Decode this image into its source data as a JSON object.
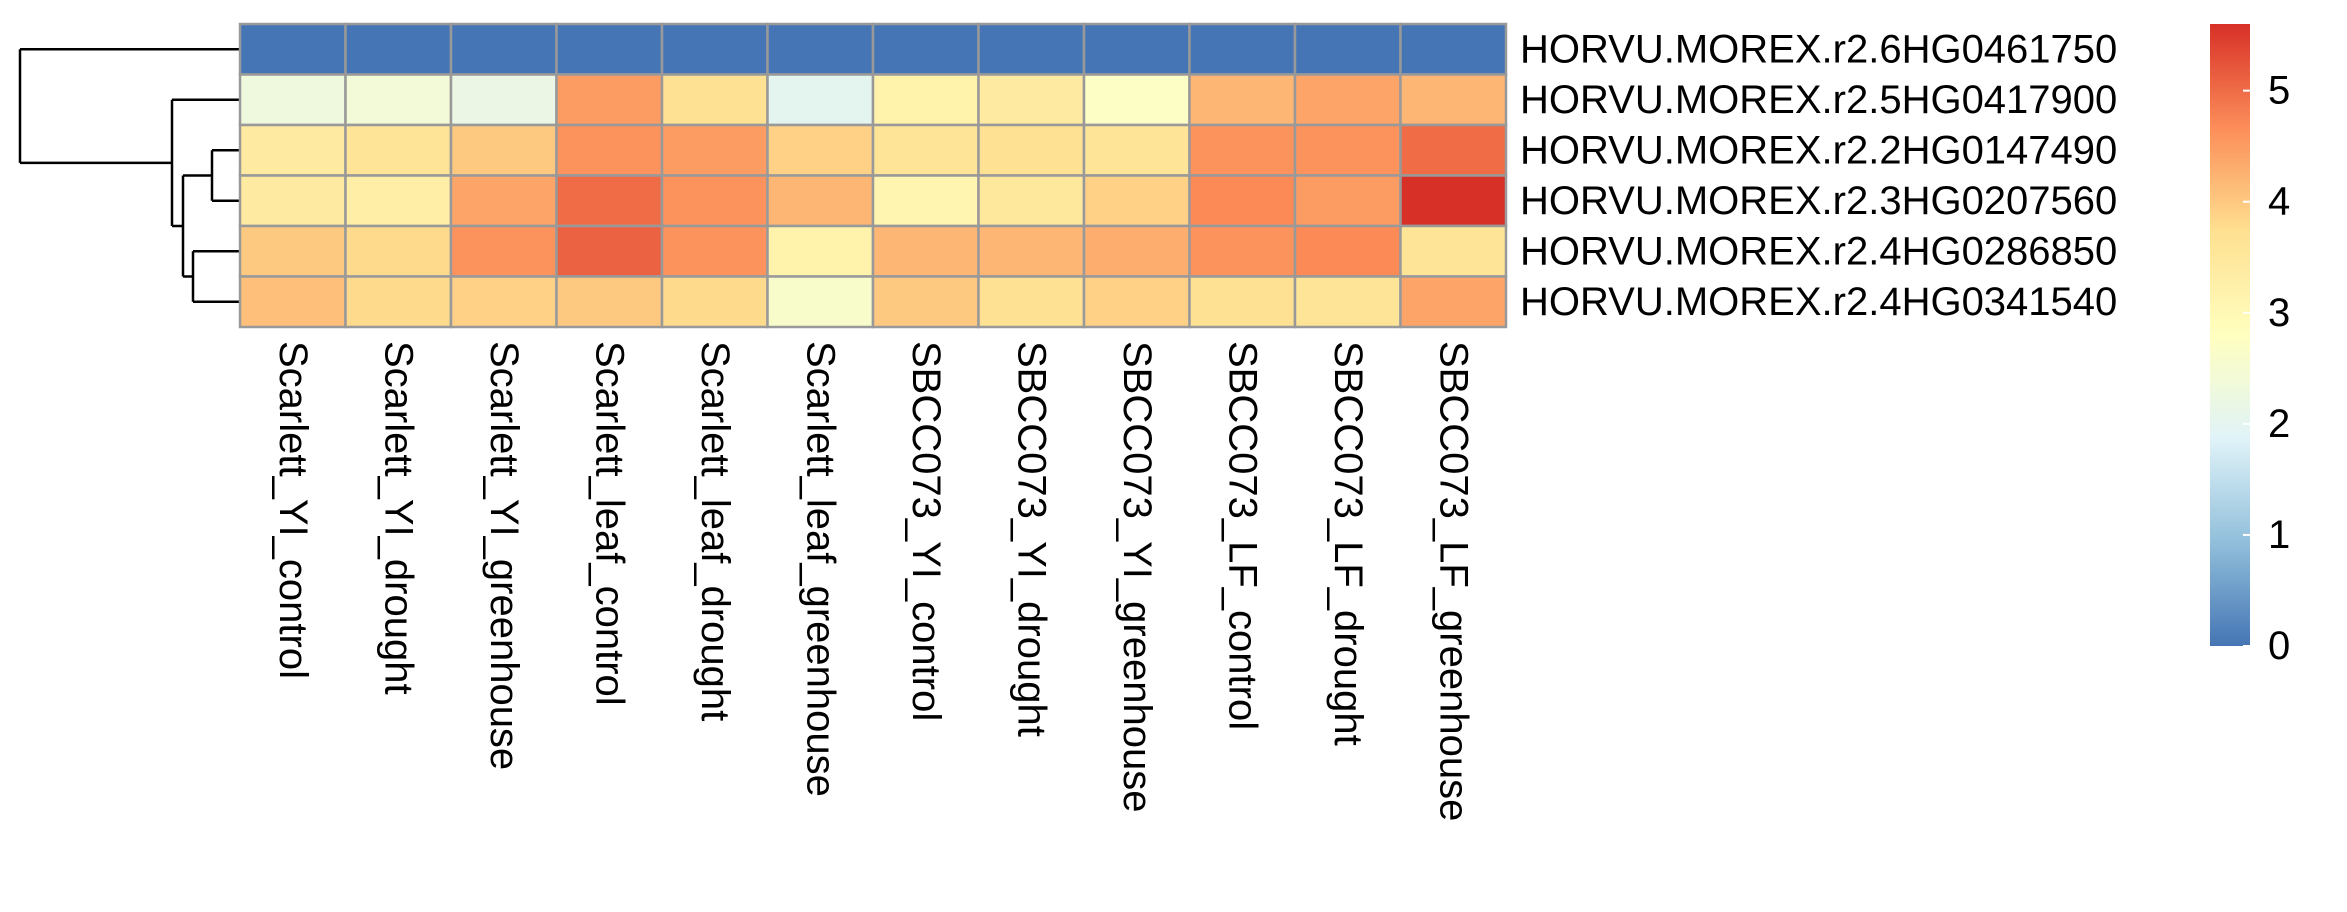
{
  "chart_data": {
    "type": "heatmap",
    "title": "",
    "rows": [
      "HORVU.MOREX.r2.6HG0461750",
      "HORVU.MOREX.r2.5HG0417900",
      "HORVU.MOREX.r2.2HG0147490",
      "HORVU.MOREX.r2.3HG0207560",
      "HORVU.MOREX.r2.4HG0286850",
      "HORVU.MOREX.r2.4HG0341540"
    ],
    "columns": [
      "Scarlett_YI_control",
      "Scarlett_YI_drought",
      "Scarlett_YI_greenhouse",
      "Scarlett_leaf_control",
      "Scarlett_leaf_drought",
      "Scarlett_leaf_greenhouse",
      "SBCC073_YI_control",
      "SBCC073_YI_drought",
      "SBCC073_YI_greenhouse",
      "SBCC073_LF_control",
      "SBCC073_LF_drought",
      "SBCC073_LF_greenhouse"
    ],
    "values": [
      [
        0,
        0,
        0,
        0,
        0,
        0,
        0,
        0,
        0,
        0,
        0,
        0
      ],
      [
        2.3,
        2.4,
        2.2,
        4.5,
        3.7,
        2.0,
        3.2,
        3.4,
        2.7,
        4.2,
        4.4,
        4.2
      ],
      [
        3.4,
        3.6,
        4.0,
        4.6,
        4.5,
        3.9,
        3.6,
        3.7,
        3.6,
        4.6,
        4.6,
        5.0
      ],
      [
        3.4,
        3.3,
        4.4,
        5.0,
        4.6,
        4.2,
        3.1,
        3.5,
        3.9,
        4.7,
        4.5,
        5.6
      ],
      [
        4.0,
        3.8,
        4.6,
        5.1,
        4.6,
        3.2,
        4.2,
        4.2,
        4.3,
        4.6,
        4.7,
        3.6
      ],
      [
        4.1,
        3.8,
        3.9,
        4.0,
        3.8,
        2.6,
        4.0,
        3.7,
        3.9,
        3.7,
        3.6,
        4.4
      ]
    ],
    "color_scale": {
      "min": 0,
      "max": 5.6,
      "stops": [
        "#4575B4",
        "#91BFDB",
        "#E0F3F8",
        "#FFFFBF",
        "#FEE090",
        "#FC8D59",
        "#D73027"
      ],
      "ticks": [
        0,
        1,
        2,
        3,
        4,
        5
      ]
    },
    "dendrogram": "rows",
    "cell_border_color": "#999999"
  }
}
